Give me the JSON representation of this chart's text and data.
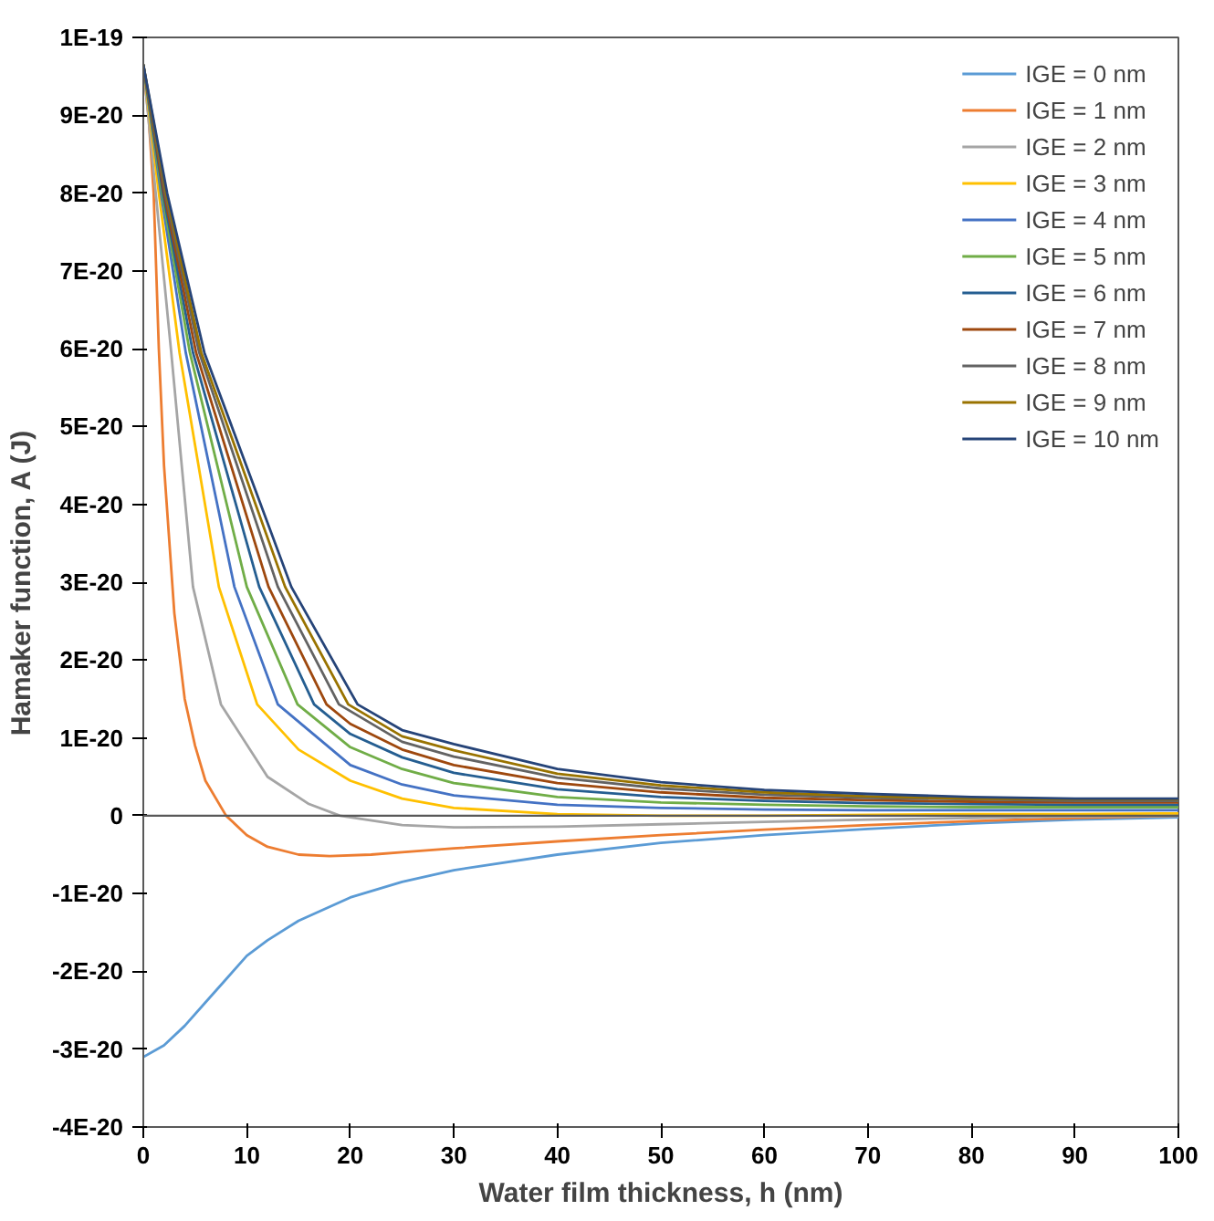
{
  "chart_data": {
    "type": "line",
    "xlabel": "Water film thickness, h (nm)",
    "ylabel": "Hamaker function, A (J)",
    "xlim": [
      0,
      100
    ],
    "xticks": [
      0,
      10,
      20,
      30,
      40,
      50,
      60,
      70,
      80,
      90,
      100
    ],
    "ylim": [
      -4e-20,
      1e-19
    ],
    "yticks": [
      {
        "value": -4e-20,
        "label": "-4E-20"
      },
      {
        "value": -3e-20,
        "label": "-3E-20"
      },
      {
        "value": -2e-20,
        "label": "-2E-20"
      },
      {
        "value": -1e-20,
        "label": "-1E-20"
      },
      {
        "value": 0,
        "label": "0"
      },
      {
        "value": 1e-20,
        "label": "1E-20"
      },
      {
        "value": 2e-20,
        "label": "2E-20"
      },
      {
        "value": 3e-20,
        "label": "3E-20"
      },
      {
        "value": 4e-20,
        "label": "4E-20"
      },
      {
        "value": 5e-20,
        "label": "5E-20"
      },
      {
        "value": 6e-20,
        "label": "6E-20"
      },
      {
        "value": 7e-20,
        "label": "7E-20"
      },
      {
        "value": 8e-20,
        "label": "8E-20"
      },
      {
        "value": 9e-20,
        "label": "9E-20"
      },
      {
        "value": 1e-19,
        "label": "1E-19"
      }
    ],
    "grid": false,
    "legend": "top right",
    "marker": "none",
    "line_style": "solid",
    "ref_lines": [
      {
        "axis": "y",
        "value": 0,
        "color": "#595959"
      }
    ],
    "series": [
      {
        "name": "IGE = 0 nm",
        "color": "#5b9bd5",
        "x": [
          0,
          2,
          4,
          6,
          8,
          10,
          12,
          15,
          20,
          25,
          30,
          40,
          50,
          60,
          70,
          80,
          90,
          100
        ],
        "values": [
          -3.1e-20,
          -2.95e-20,
          -2.7e-20,
          -2.4e-20,
          -2.1e-20,
          -1.8e-20,
          -1.6e-20,
          -1.35e-20,
          -1.05e-20,
          -8.5e-21,
          -7e-21,
          -5e-21,
          -3.5e-21,
          -2.5e-21,
          -1.7e-21,
          -1e-21,
          -5e-22,
          -2e-22
        ]
      },
      {
        "name": "IGE = 1 nm",
        "color": "#ed7d31",
        "x": [
          0,
          0.5,
          1,
          1.5,
          2,
          3,
          4,
          5,
          6,
          8,
          10,
          12,
          15,
          18,
          22,
          25,
          30,
          40,
          50,
          60,
          70,
          80,
          90,
          100
        ],
        "values": [
          9.6e-20,
          9e-20,
          8e-20,
          6e-20,
          4.5e-20,
          2.6e-20,
          1.5e-20,
          9e-21,
          4.5e-21,
          0,
          -2.5e-21,
          -4e-21,
          -5e-21,
          -5.2e-21,
          -5e-21,
          -4.7e-21,
          -4.2e-21,
          -3.3e-21,
          -2.5e-21,
          -1.8e-21,
          -1.2e-21,
          -7e-22,
          -3e-22,
          0
        ]
      },
      {
        "name": "IGE = 2 nm",
        "color": "#a5a5a5",
        "x": [
          0,
          1.2,
          2.7,
          4.8,
          7.5,
          12,
          16,
          19,
          25,
          30,
          40,
          50,
          60,
          70,
          80,
          90,
          100
        ],
        "values": [
          9.65e-20,
          8e-20,
          5.95e-20,
          2.94e-20,
          1.43e-20,
          5e-21,
          1.5e-21,
          0,
          -1.2e-21,
          -1.5e-21,
          -1.4e-21,
          -1.1e-21,
          -8e-22,
          -5e-22,
          -3e-22,
          -1e-22,
          0
        ]
      },
      {
        "name": "IGE = 3 nm",
        "color": "#ffc000",
        "x": [
          0,
          1.5,
          3.5,
          7.3,
          11,
          15,
          20,
          25,
          30,
          40,
          50,
          60,
          70,
          80,
          90,
          100
        ],
        "values": [
          9.65e-20,
          8e-20,
          5.95e-20,
          2.94e-20,
          1.43e-20,
          8.5e-21,
          4.5e-21,
          2.2e-21,
          1e-21,
          2e-22,
          0,
          0,
          1e-22,
          2e-22,
          2e-22,
          3e-22
        ]
      },
      {
        "name": "IGE = 4 nm",
        "color": "#4472c4",
        "x": [
          0,
          1.7,
          4.1,
          8.8,
          13,
          20,
          25,
          30,
          40,
          50,
          60,
          70,
          80,
          90,
          100
        ],
        "values": [
          9.65e-20,
          8e-20,
          5.95e-20,
          2.94e-20,
          1.43e-20,
          6.5e-21,
          4e-21,
          2.6e-21,
          1.4e-21,
          1e-21,
          8e-22,
          7e-22,
          7e-22,
          7e-22,
          7e-22
        ]
      },
      {
        "name": "IGE = 5 nm",
        "color": "#70ad47",
        "x": [
          0,
          1.8,
          4.5,
          10,
          14.9,
          20,
          25,
          30,
          40,
          50,
          60,
          70,
          80,
          90,
          100
        ],
        "values": [
          9.65e-20,
          8e-20,
          5.95e-20,
          2.94e-20,
          1.43e-20,
          8.8e-21,
          6e-21,
          4.2e-21,
          2.4e-21,
          1.7e-21,
          1.4e-21,
          1.2e-21,
          1.1e-21,
          1.1e-21,
          1.1e-21
        ]
      },
      {
        "name": "IGE = 6 nm",
        "color": "#255e91",
        "x": [
          0,
          1.9,
          4.8,
          11.2,
          16.5,
          20,
          25,
          30,
          40,
          50,
          60,
          70,
          80,
          90,
          100
        ],
        "values": [
          9.65e-20,
          8e-20,
          5.95e-20,
          2.94e-20,
          1.43e-20,
          1.05e-20,
          7.5e-21,
          5.5e-21,
          3.4e-21,
          2.4e-21,
          1.9e-21,
          1.6e-21,
          1.5e-21,
          1.4e-21,
          1.4e-21
        ]
      },
      {
        "name": "IGE = 7 nm",
        "color": "#9e480e",
        "x": [
          0,
          2.0,
          5.1,
          12.1,
          17.7,
          20,
          25,
          30,
          40,
          50,
          60,
          70,
          80,
          90,
          100
        ],
        "values": [
          9.65e-20,
          8e-20,
          5.95e-20,
          2.94e-20,
          1.43e-20,
          1.18e-20,
          8.5e-21,
          6.5e-21,
          4.2e-21,
          3e-21,
          2.3e-21,
          2e-21,
          1.8e-21,
          1.7e-21,
          1.7e-21
        ]
      },
      {
        "name": "IGE = 8 nm",
        "color": "#636363",
        "x": [
          0,
          2.1,
          5.4,
          13,
          18.9,
          25,
          30,
          40,
          50,
          60,
          70,
          80,
          90,
          100
        ],
        "values": [
          9.65e-20,
          8e-20,
          5.95e-20,
          2.94e-20,
          1.43e-20,
          9.5e-21,
          7.6e-21,
          4.9e-21,
          3.5e-21,
          2.7e-21,
          2.3e-21,
          2.1e-21,
          1.9e-21,
          1.9e-21
        ]
      },
      {
        "name": "IGE = 9 nm",
        "color": "#997300",
        "x": [
          0,
          2.2,
          5.6,
          13.7,
          19.8,
          25,
          30,
          40,
          50,
          60,
          70,
          80,
          90,
          100
        ],
        "values": [
          9.65e-20,
          8e-20,
          5.95e-20,
          2.94e-20,
          1.43e-20,
          1.02e-20,
          8.4e-21,
          5.4e-21,
          3.9e-21,
          3e-21,
          2.5e-21,
          2.2e-21,
          2.1e-21,
          2.1e-21
        ]
      },
      {
        "name": "IGE = 10 nm",
        "color": "#264478",
        "x": [
          0,
          2.3,
          5.9,
          14.3,
          20.7,
          25,
          30,
          40,
          50,
          60,
          70,
          80,
          90,
          100
        ],
        "values": [
          9.65e-20,
          8e-20,
          5.95e-20,
          2.94e-20,
          1.43e-20,
          1.1e-20,
          9.2e-21,
          6e-21,
          4.3e-21,
          3.3e-21,
          2.8e-21,
          2.4e-21,
          2.2e-21,
          2.2e-21
        ]
      }
    ]
  }
}
